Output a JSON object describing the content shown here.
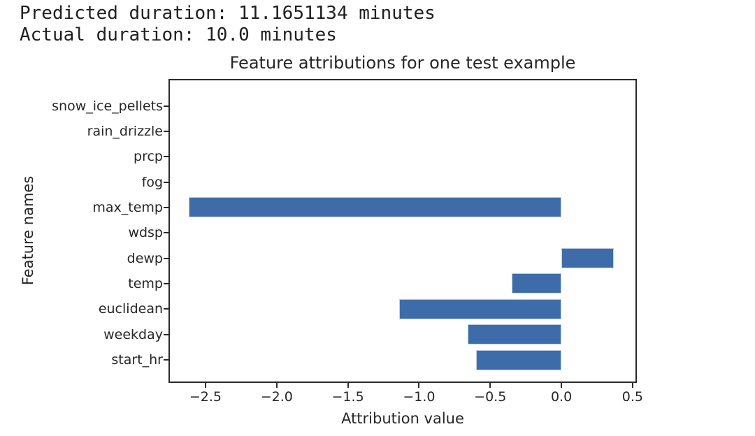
{
  "header": {
    "predicted_line": "Predicted duration: 11.1651134 minutes",
    "actual_line": "Actual duration: 10.0 minutes"
  },
  "chart_data": {
    "type": "bar",
    "orientation": "horizontal",
    "title": "Feature attributions for one test example",
    "xlabel": "Attribution value",
    "ylabel": "Feature names",
    "categories": [
      "snow_ice_pellets",
      "rain_drizzle",
      "prcp",
      "fog",
      "max_temp",
      "wdsp",
      "dewp",
      "temp",
      "euclidean",
      "weekday",
      "start_hr"
    ],
    "values": [
      0,
      0,
      0,
      0,
      -2.62,
      0,
      0.37,
      -0.35,
      -1.14,
      -0.66,
      -0.6
    ],
    "xlim": [
      -2.76,
      0.53
    ],
    "x_ticks": [
      -2.5,
      -2.0,
      -1.5,
      -1.0,
      -0.5,
      0.0,
      0.5
    ],
    "x_tick_labels": [
      "−2.5",
      "−2.0",
      "−1.5",
      "−1.0",
      "−0.5",
      "0.0",
      "0.5"
    ],
    "bar_color": "#3E6CA8",
    "grid": false,
    "legend": false
  }
}
